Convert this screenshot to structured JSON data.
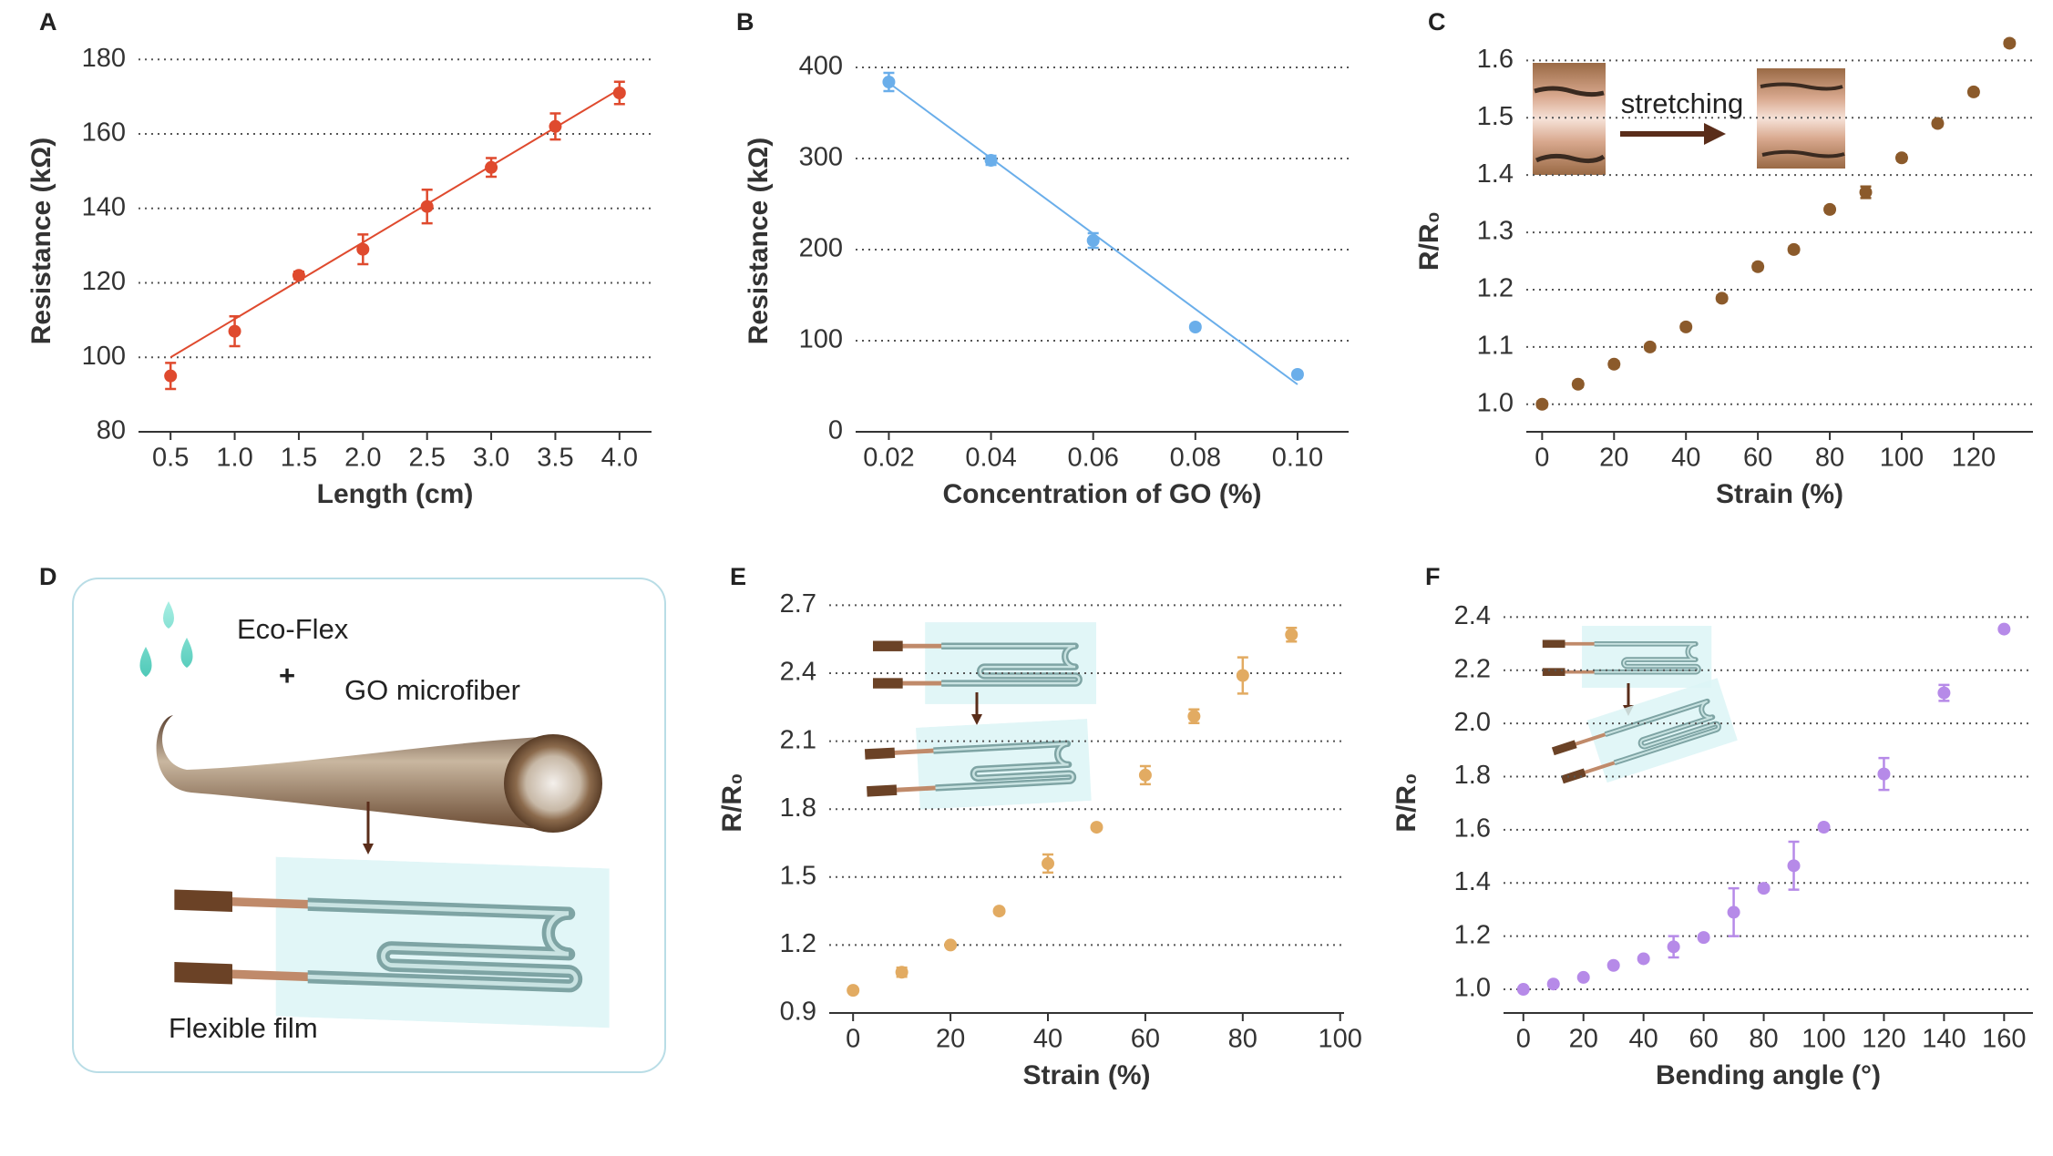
{
  "chart_data": [
    {
      "type": "scatter",
      "panel": "A",
      "xlabel": "Length (cm)",
      "ylabel": "Resistance (kΩ)",
      "x": [
        0.5,
        1.0,
        1.5,
        2.0,
        2.5,
        3.0,
        3.5,
        4.0
      ],
      "series": [
        {
          "color": "#df4a2e",
          "values": [
            95,
            107,
            122,
            129,
            140.5,
            151,
            162,
            171
          ],
          "errors": [
            3.5,
            4,
            1,
            4,
            4.5,
            2.5,
            3.5,
            3
          ]
        }
      ],
      "fit": {
        "x": [
          0.5,
          4.0
        ],
        "y": [
          100,
          172
        ]
      },
      "xlim": [
        0.25,
        4.25
      ],
      "ylim": [
        80,
        182.5
      ],
      "xticks": [
        0.5,
        {
          "value": 1,
          "label": "1.0"
        },
        1.5,
        {
          "value": 2,
          "label": "2.0"
        },
        2.5,
        {
          "value": 3,
          "label": "3.0"
        },
        3.5,
        {
          "value": 4,
          "label": "4.0"
        }
      ],
      "yticks": [
        80,
        100,
        120,
        140,
        160,
        180
      ],
      "grid": true
    },
    {
      "type": "scatter",
      "panel": "B",
      "xlabel": "Concentration of GO (%)",
      "ylabel": "Resistance (kΩ)",
      "x": [
        0.02,
        0.04,
        0.06,
        0.08,
        0.1
      ],
      "series": [
        {
          "color": "#6aaeea",
          "values": [
            384,
            298,
            210,
            115,
            63
          ],
          "errors": [
            10,
            5,
            8,
            3,
            3
          ]
        }
      ],
      "fit": {
        "x": [
          0.02,
          0.1
        ],
        "y": [
          383,
          52
        ]
      },
      "xlim": [
        0.0135,
        0.11
      ],
      "ylim": [
        0,
        419
      ],
      "xticks": [
        0.02,
        0.04,
        0.06,
        0.08,
        {
          "value": 0.1,
          "label": "0.10"
        }
      ],
      "yticks": [
        0,
        100,
        200,
        300,
        400
      ],
      "grid": true
    },
    {
      "type": "scatter",
      "panel": "C",
      "xlabel": "Strain (%)",
      "ylabel": "R/R₀",
      "annotation": "stretching",
      "x": [
        0,
        10,
        20,
        30,
        40,
        50,
        60,
        70,
        80,
        90,
        100,
        110,
        120,
        130
      ],
      "series": [
        {
          "color": "#8b5a2b",
          "values": [
            1.0,
            1.035,
            1.07,
            1.1,
            1.135,
            1.185,
            1.24,
            1.27,
            1.34,
            1.37,
            1.43,
            1.49,
            1.545,
            1.63
          ],
          "errors": [
            0.005,
            0.005,
            0.005,
            0.005,
            0.005,
            0.005,
            0.005,
            0.005,
            0.005,
            0.01,
            0.005,
            0.005,
            0.005,
            0.005
          ]
        }
      ],
      "xlim": [
        -4.4,
        136.5
      ],
      "ylim": [
        0.952,
        1.618
      ],
      "xticks": [
        0,
        20,
        40,
        60,
        80,
        100,
        120
      ],
      "yticks": [
        {
          "value": 1,
          "label": "1.0"
        },
        1.1,
        1.2,
        1.3,
        1.4,
        1.5,
        1.6
      ],
      "grid": true
    },
    {
      "type": "scatter",
      "panel": "E",
      "xlabel": "Strain (%)",
      "ylabel": "R/R₀",
      "x": [
        0,
        10,
        20,
        30,
        40,
        50,
        60,
        70,
        80,
        90
      ],
      "series": [
        {
          "color": "#e2ab62",
          "values": [
            1.0,
            1.08,
            1.2,
            1.35,
            1.56,
            1.72,
            1.95,
            2.21,
            2.39,
            2.57
          ],
          "errors": [
            0.005,
            0.02,
            0.01,
            0.01,
            0.04,
            0.01,
            0.04,
            0.03,
            0.08,
            0.03
          ]
        }
      ],
      "xlim": [
        -4.9,
        100.8
      ],
      "ylim": [
        0.9,
        2.758
      ],
      "xticks": [
        0,
        20,
        40,
        60,
        80,
        100
      ],
      "yticks": [
        0.9,
        1.2,
        1.5,
        1.8,
        2.1,
        2.4,
        2.7
      ],
      "grid": true
    },
    {
      "type": "scatter",
      "panel": "F",
      "xlabel": "Bending angle (°)",
      "ylabel": "R/R₀",
      "x": [
        0,
        10,
        20,
        30,
        40,
        50,
        60,
        70,
        80,
        90,
        100,
        120,
        140,
        160
      ],
      "series": [
        {
          "color": "#b68ae8",
          "values": [
            1.0,
            1.02,
            1.045,
            1.09,
            1.115,
            1.16,
            1.195,
            1.29,
            1.38,
            1.465,
            1.61,
            1.81,
            2.115,
            2.355
          ],
          "errors": [
            0.005,
            0.005,
            0.005,
            0.005,
            0.005,
            0.04,
            0.01,
            0.09,
            0.01,
            0.09,
            0.005,
            0.06,
            0.03,
            0.005
          ]
        }
      ],
      "xlim": [
        -6.6,
        169.6
      ],
      "ylim": [
        0.911,
        2.494
      ],
      "xticks": [
        0,
        20,
        40,
        60,
        80,
        100,
        120,
        140,
        160
      ],
      "yticks": [
        {
          "value": 1,
          "label": "1.0"
        },
        1.2,
        1.4,
        1.6,
        1.8,
        {
          "value": 2,
          "label": "2.0"
        },
        2.2,
        2.4
      ],
      "grid": true
    }
  ],
  "diagram": {
    "panel": "D",
    "labels": [
      "Eco-Flex",
      "+",
      "GO microfiber",
      "Flexible film"
    ]
  }
}
